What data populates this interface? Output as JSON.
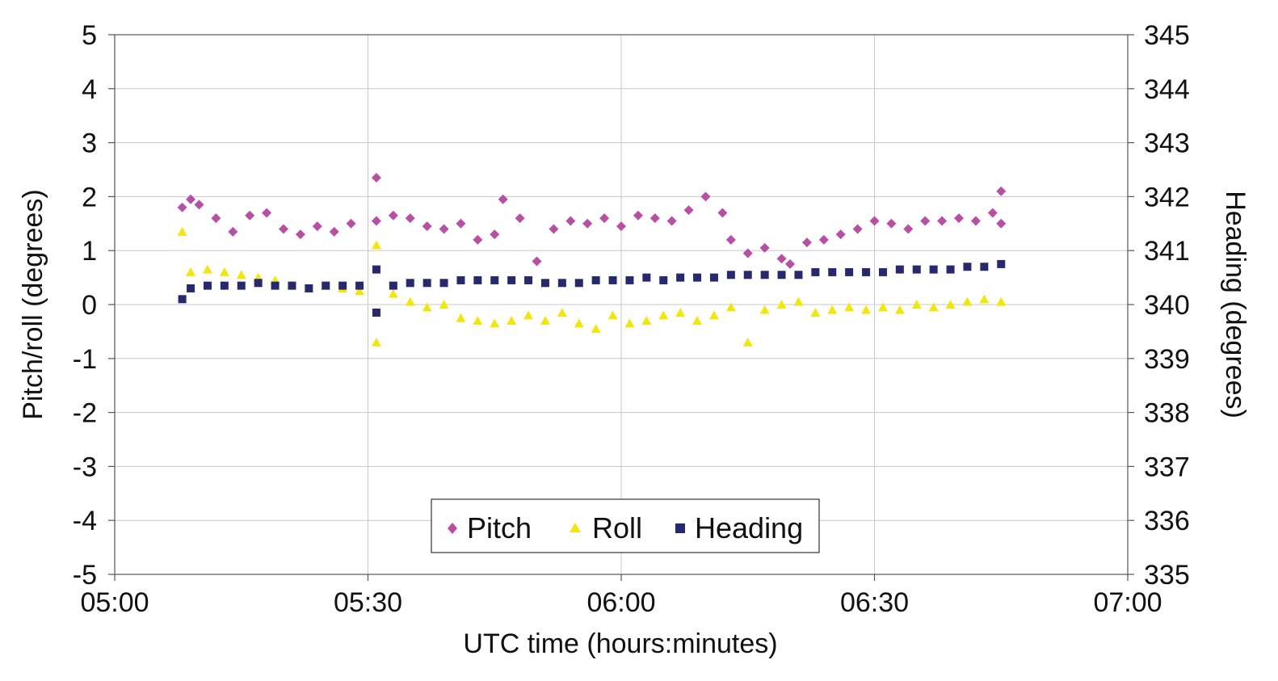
{
  "chart_data": {
    "type": "scatter",
    "title": "",
    "xlabel": "UTC time (hours:minutes)",
    "ylabel": "Pitch/roll (degrees)",
    "y2label": "Heading (degrees)",
    "x_ticks": [
      "05:00",
      "05:30",
      "06:00",
      "06:30",
      "07:00"
    ],
    "xlim": [
      "05:00",
      "07:00"
    ],
    "y_ticks": [
      "5",
      "4",
      "3",
      "2",
      "1",
      "0",
      "-1",
      "-2",
      "-3",
      "-4",
      "-5"
    ],
    "ylim": [
      -5,
      5
    ],
    "y2_ticks": [
      "345",
      "344",
      "343",
      "342",
      "341",
      "340",
      "339",
      "338",
      "337",
      "336",
      "335"
    ],
    "y2lim": [
      335,
      345
    ],
    "grid": true,
    "legend_position": "bottom-center",
    "series": [
      {
        "name": "Pitch",
        "marker": "diamond",
        "color": "#B84FA3",
        "axis": "left",
        "points": [
          [
            "05:08",
            1.8
          ],
          [
            "05:09",
            1.95
          ],
          [
            "05:10",
            1.85
          ],
          [
            "05:12",
            1.6
          ],
          [
            "05:14",
            1.35
          ],
          [
            "05:16",
            1.65
          ],
          [
            "05:18",
            1.7
          ],
          [
            "05:20",
            1.4
          ],
          [
            "05:22",
            1.3
          ],
          [
            "05:24",
            1.45
          ],
          [
            "05:26",
            1.35
          ],
          [
            "05:28",
            1.5
          ],
          [
            "05:31",
            2.35
          ],
          [
            "05:31",
            1.55
          ],
          [
            "05:33",
            1.65
          ],
          [
            "05:35",
            1.6
          ],
          [
            "05:37",
            1.45
          ],
          [
            "05:39",
            1.4
          ],
          [
            "05:41",
            1.5
          ],
          [
            "05:43",
            1.2
          ],
          [
            "05:45",
            1.3
          ],
          [
            "05:46",
            1.95
          ],
          [
            "05:48",
            1.6
          ],
          [
            "05:50",
            0.8
          ],
          [
            "05:52",
            1.4
          ],
          [
            "05:54",
            1.55
          ],
          [
            "05:56",
            1.5
          ],
          [
            "05:58",
            1.6
          ],
          [
            "06:00",
            1.45
          ],
          [
            "06:02",
            1.65
          ],
          [
            "06:04",
            1.6
          ],
          [
            "06:06",
            1.55
          ],
          [
            "06:08",
            1.75
          ],
          [
            "06:10",
            2.0
          ],
          [
            "06:12",
            1.7
          ],
          [
            "06:13",
            1.2
          ],
          [
            "06:15",
            0.95
          ],
          [
            "06:17",
            1.05
          ],
          [
            "06:19",
            0.85
          ],
          [
            "06:20",
            0.75
          ],
          [
            "06:22",
            1.15
          ],
          [
            "06:24",
            1.2
          ],
          [
            "06:26",
            1.3
          ],
          [
            "06:28",
            1.4
          ],
          [
            "06:30",
            1.55
          ],
          [
            "06:32",
            1.5
          ],
          [
            "06:34",
            1.4
          ],
          [
            "06:36",
            1.55
          ],
          [
            "06:38",
            1.55
          ],
          [
            "06:40",
            1.6
          ],
          [
            "06:42",
            1.55
          ],
          [
            "06:44",
            1.7
          ],
          [
            "06:45",
            2.1
          ],
          [
            "06:45",
            1.5
          ]
        ]
      },
      {
        "name": "Roll",
        "marker": "triangle",
        "color": "#F2E611",
        "axis": "left",
        "points": [
          [
            "05:08",
            1.35
          ],
          [
            "05:09",
            0.6
          ],
          [
            "05:11",
            0.65
          ],
          [
            "05:13",
            0.6
          ],
          [
            "05:15",
            0.55
          ],
          [
            "05:17",
            0.5
          ],
          [
            "05:19",
            0.45
          ],
          [
            "05:21",
            0.35
          ],
          [
            "05:23",
            0.3
          ],
          [
            "05:25",
            0.35
          ],
          [
            "05:27",
            0.3
          ],
          [
            "05:29",
            0.25
          ],
          [
            "05:31",
            -0.7
          ],
          [
            "05:31",
            1.1
          ],
          [
            "05:33",
            0.2
          ],
          [
            "05:35",
            0.05
          ],
          [
            "05:37",
            -0.05
          ],
          [
            "05:39",
            0.0
          ],
          [
            "05:41",
            -0.25
          ],
          [
            "05:43",
            -0.3
          ],
          [
            "05:45",
            -0.35
          ],
          [
            "05:47",
            -0.3
          ],
          [
            "05:49",
            -0.2
          ],
          [
            "05:51",
            -0.3
          ],
          [
            "05:53",
            -0.15
          ],
          [
            "05:55",
            -0.35
          ],
          [
            "05:57",
            -0.45
          ],
          [
            "05:59",
            -0.2
          ],
          [
            "06:01",
            -0.35
          ],
          [
            "06:03",
            -0.3
          ],
          [
            "06:05",
            -0.2
          ],
          [
            "06:07",
            -0.15
          ],
          [
            "06:09",
            -0.3
          ],
          [
            "06:11",
            -0.2
          ],
          [
            "06:13",
            -0.05
          ],
          [
            "06:15",
            -0.7
          ],
          [
            "06:17",
            -0.1
          ],
          [
            "06:19",
            0.0
          ],
          [
            "06:21",
            0.05
          ],
          [
            "06:23",
            -0.15
          ],
          [
            "06:25",
            -0.1
          ],
          [
            "06:27",
            -0.05
          ],
          [
            "06:29",
            -0.1
          ],
          [
            "06:31",
            -0.05
          ],
          [
            "06:33",
            -0.1
          ],
          [
            "06:35",
            0.0
          ],
          [
            "06:37",
            -0.05
          ],
          [
            "06:39",
            0.0
          ],
          [
            "06:41",
            0.05
          ],
          [
            "06:43",
            0.1
          ],
          [
            "06:45",
            0.05
          ]
        ]
      },
      {
        "name": "Heading",
        "marker": "square",
        "color": "#26296E",
        "axis": "right",
        "points": [
          [
            "05:08",
            340.1
          ],
          [
            "05:09",
            340.3
          ],
          [
            "05:11",
            340.35
          ],
          [
            "05:13",
            340.35
          ],
          [
            "05:15",
            340.35
          ],
          [
            "05:17",
            340.4
          ],
          [
            "05:19",
            340.35
          ],
          [
            "05:21",
            340.35
          ],
          [
            "05:23",
            340.3
          ],
          [
            "05:25",
            340.35
          ],
          [
            "05:27",
            340.35
          ],
          [
            "05:29",
            340.35
          ],
          [
            "05:31",
            340.65
          ],
          [
            "05:31",
            339.85
          ],
          [
            "05:33",
            340.35
          ],
          [
            "05:35",
            340.4
          ],
          [
            "05:37",
            340.4
          ],
          [
            "05:39",
            340.4
          ],
          [
            "05:41",
            340.45
          ],
          [
            "05:43",
            340.45
          ],
          [
            "05:45",
            340.45
          ],
          [
            "05:47",
            340.45
          ],
          [
            "05:49",
            340.45
          ],
          [
            "05:51",
            340.4
          ],
          [
            "05:53",
            340.4
          ],
          [
            "05:55",
            340.4
          ],
          [
            "05:57",
            340.45
          ],
          [
            "05:59",
            340.45
          ],
          [
            "06:01",
            340.45
          ],
          [
            "06:03",
            340.5
          ],
          [
            "06:05",
            340.45
          ],
          [
            "06:07",
            340.5
          ],
          [
            "06:09",
            340.5
          ],
          [
            "06:11",
            340.5
          ],
          [
            "06:13",
            340.55
          ],
          [
            "06:15",
            340.55
          ],
          [
            "06:17",
            340.55
          ],
          [
            "06:19",
            340.55
          ],
          [
            "06:21",
            340.55
          ],
          [
            "06:23",
            340.6
          ],
          [
            "06:25",
            340.6
          ],
          [
            "06:27",
            340.6
          ],
          [
            "06:29",
            340.6
          ],
          [
            "06:31",
            340.6
          ],
          [
            "06:33",
            340.65
          ],
          [
            "06:35",
            340.65
          ],
          [
            "06:37",
            340.65
          ],
          [
            "06:39",
            340.65
          ],
          [
            "06:41",
            340.7
          ],
          [
            "06:43",
            340.7
          ],
          [
            "06:45",
            340.75
          ]
        ]
      }
    ]
  }
}
